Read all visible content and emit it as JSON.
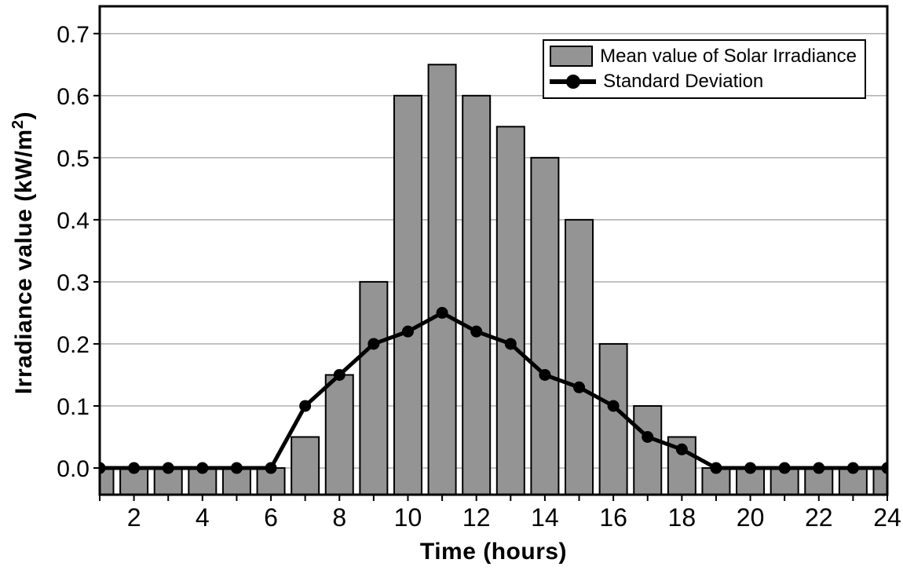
{
  "chart_data": {
    "type": "bar",
    "title": "",
    "xlabel": "Time (hours)",
    "ylabel": "Irradiance value (kW/m^2)",
    "ylabel_parts": {
      "prefix": "Irradiance value (kW/m",
      "sup": "2",
      "suffix": ")"
    },
    "x": [
      1,
      2,
      3,
      4,
      5,
      6,
      7,
      8,
      9,
      10,
      11,
      12,
      13,
      14,
      15,
      16,
      17,
      18,
      19,
      20,
      21,
      22,
      23,
      24
    ],
    "series": [
      {
        "name": "Mean value of Solar Irradiance",
        "type": "bar",
        "color": "#949494",
        "border_color": "#000000",
        "values": [
          0,
          0,
          0,
          0,
          0,
          0,
          0.05,
          0.15,
          0.3,
          0.6,
          0.65,
          0.6,
          0.55,
          0.5,
          0.4,
          0.2,
          0.1,
          0.05,
          0,
          0,
          0,
          0,
          0,
          0
        ]
      },
      {
        "name": "Standard Deviation",
        "type": "line",
        "color": "#000000",
        "marker": "circle",
        "values": [
          0,
          0,
          0,
          0,
          0,
          0,
          0.1,
          0.15,
          0.2,
          0.22,
          0.25,
          0.22,
          0.2,
          0.15,
          0.13,
          0.1,
          0.05,
          0.03,
          0,
          0,
          0,
          0,
          0,
          0
        ]
      }
    ],
    "xticks": [
      2,
      4,
      6,
      8,
      10,
      12,
      14,
      16,
      18,
      20,
      22,
      24
    ],
    "yticks": [
      0.0,
      0.1,
      0.2,
      0.3,
      0.4,
      0.5,
      0.6,
      0.7
    ],
    "ytick_labels": [
      "0.0",
      "0.1",
      "0.2",
      "0.3",
      "0.4",
      "0.5",
      "0.6",
      "0.7"
    ],
    "xlim": [
      1,
      24
    ],
    "ylim": [
      -0.043,
      0.744
    ],
    "grid": "horizontal",
    "grid_color": "#a8a8a8",
    "frame_color": "#000000",
    "background": "#ffffff",
    "legend_position": "top-right"
  }
}
